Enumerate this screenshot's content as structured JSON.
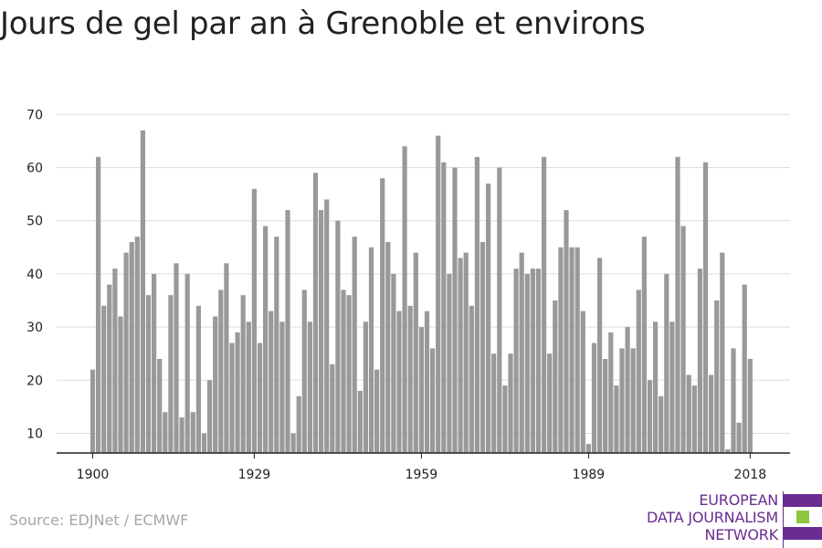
{
  "title": "Jours de gel par an à Grenoble et environs",
  "source": "Source: EDJNet / ECMWF",
  "logo": {
    "lines": [
      "EUROPEAN",
      "DATA JOURNALISM",
      "NETWORK"
    ],
    "colors": {
      "text": "#6a2c91",
      "bar_primary": "#6a2c91",
      "bar_accent": "#8ec63f"
    }
  },
  "colors": {
    "bar": "#999999",
    "grid": "#dddddd",
    "axis": "#222222",
    "tick_text": "#222222"
  },
  "chart_data": {
    "type": "bar",
    "title": "Jours de gel par an à Grenoble et environs",
    "xlabel": "",
    "ylabel": "",
    "ylim": [
      6,
      70
    ],
    "yticks": [
      10,
      20,
      30,
      40,
      50,
      60,
      70
    ],
    "xticks": [
      1900,
      1929,
      1959,
      1989,
      2018
    ],
    "grid": true,
    "categories": [
      1900,
      1901,
      1902,
      1903,
      1904,
      1905,
      1906,
      1907,
      1908,
      1909,
      1910,
      1911,
      1912,
      1913,
      1914,
      1915,
      1916,
      1917,
      1918,
      1919,
      1920,
      1921,
      1922,
      1923,
      1924,
      1925,
      1926,
      1927,
      1928,
      1929,
      1930,
      1931,
      1932,
      1933,
      1934,
      1935,
      1936,
      1937,
      1938,
      1939,
      1940,
      1941,
      1942,
      1943,
      1944,
      1945,
      1946,
      1947,
      1948,
      1949,
      1950,
      1951,
      1952,
      1953,
      1954,
      1955,
      1956,
      1957,
      1958,
      1959,
      1960,
      1961,
      1962,
      1963,
      1964,
      1965,
      1966,
      1967,
      1968,
      1969,
      1970,
      1971,
      1972,
      1973,
      1974,
      1975,
      1976,
      1977,
      1978,
      1979,
      1980,
      1981,
      1982,
      1983,
      1984,
      1985,
      1986,
      1987,
      1988,
      1989,
      1990,
      1991,
      1992,
      1993,
      1994,
      1995,
      1996,
      1997,
      1998,
      1999,
      2000,
      2001,
      2002,
      2003,
      2004,
      2005,
      2006,
      2007,
      2008,
      2009,
      2010,
      2011,
      2012,
      2013,
      2014,
      2015,
      2016,
      2017,
      2018
    ],
    "values": [
      22,
      62,
      34,
      38,
      41,
      32,
      44,
      46,
      47,
      67,
      36,
      40,
      24,
      14,
      36,
      42,
      13,
      40,
      14,
      34,
      10,
      20,
      32,
      37,
      42,
      27,
      29,
      36,
      31,
      56,
      27,
      49,
      33,
      47,
      31,
      52,
      10,
      17,
      37,
      31,
      59,
      52,
      54,
      23,
      50,
      37,
      36,
      47,
      18,
      31,
      45,
      22,
      58,
      46,
      40,
      33,
      64,
      34,
      44,
      30,
      33,
      26,
      66,
      61,
      40,
      60,
      43,
      44,
      34,
      62,
      46,
      57,
      25,
      60,
      19,
      25,
      41,
      44,
      40,
      41,
      41,
      62,
      25,
      35,
      45,
      52,
      45,
      45,
      33,
      8,
      27,
      43,
      24,
      29,
      19,
      26,
      30,
      26,
      37,
      47,
      20,
      31,
      17,
      40,
      31,
      62,
      49,
      21,
      19,
      41,
      61,
      21,
      35,
      44,
      7,
      26,
      12,
      38,
      24
    ]
  }
}
